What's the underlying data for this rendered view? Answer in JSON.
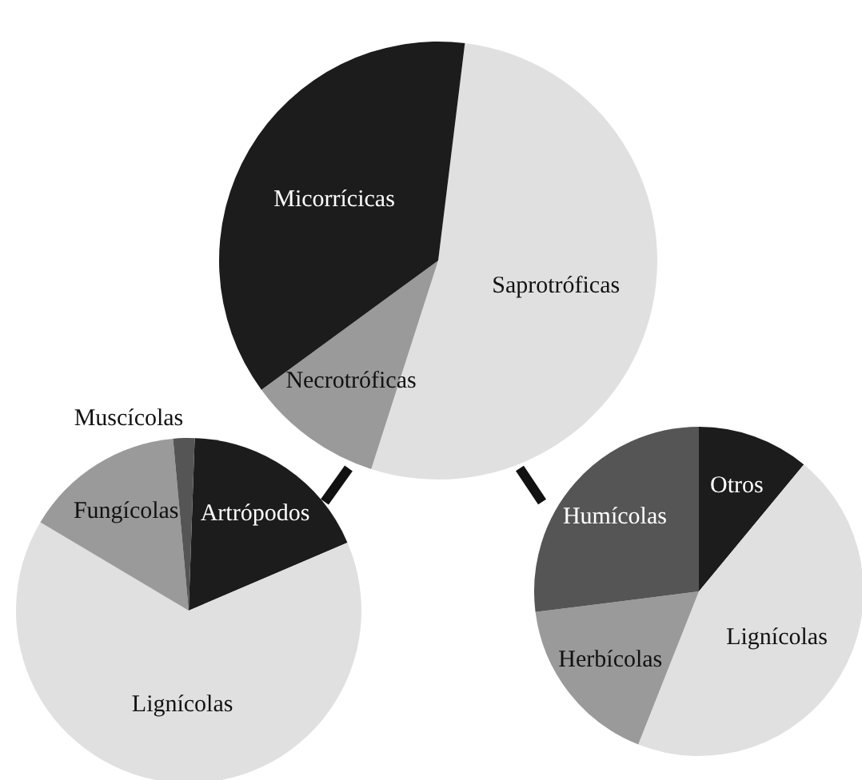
{
  "chart_data": [
    {
      "type": "pie",
      "categories": [
        "Saprotróficas",
        "Necrotróficas",
        "Micorrícicas"
      ],
      "values": [
        53,
        10,
        37
      ],
      "colors": [
        "#e0e0e0",
        "#9a9a9a",
        "#1c1c1c"
      ]
    },
    {
      "type": "pie",
      "categories": [
        "Artrópodos",
        "Lignícolas",
        "Fungícolas",
        "Muscícolas"
      ],
      "values": [
        18,
        65,
        15,
        2
      ],
      "colors": [
        "#1c1c1c",
        "#e0e0e0",
        "#9a9a9a",
        "#555555"
      ]
    },
    {
      "type": "pie",
      "categories": [
        "Otros",
        "Lignícolas",
        "Herbícolas",
        "Humícolas"
      ],
      "values": [
        11,
        45,
        17,
        27
      ],
      "colors": [
        "#1c1c1c",
        "#e0e0e0",
        "#9a9a9a",
        "#555555"
      ]
    }
  ]
}
